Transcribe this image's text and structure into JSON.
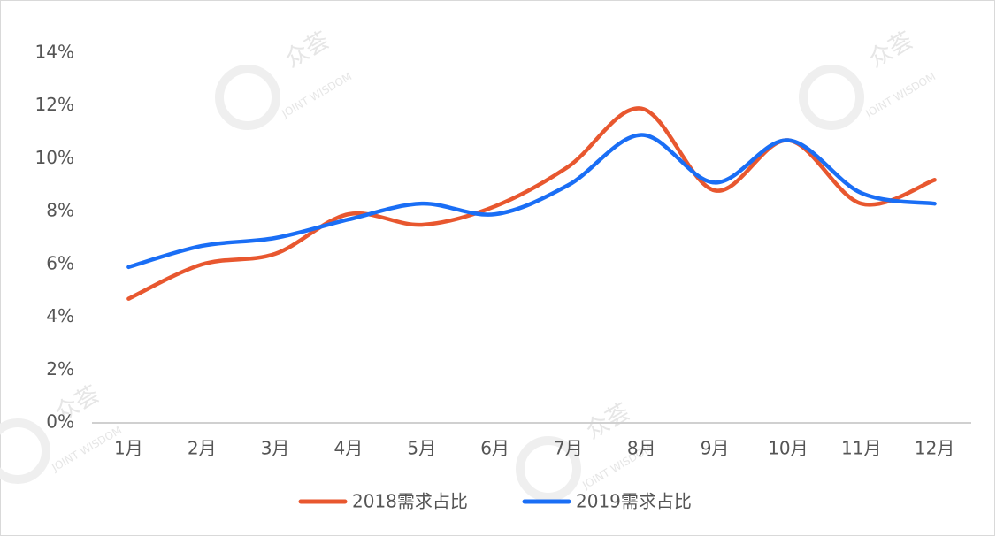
{
  "chart_data": {
    "type": "line",
    "categories": [
      "1月",
      "2月",
      "3月",
      "4月",
      "5月",
      "6月",
      "7月",
      "8月",
      "9月",
      "10月",
      "11月",
      "12月"
    ],
    "series": [
      {
        "name": "2018需求占比",
        "color": "#e8572f",
        "values": [
          4.7,
          6.0,
          6.4,
          7.9,
          7.5,
          8.2,
          9.7,
          11.9,
          8.8,
          10.7,
          8.3,
          9.2
        ]
      },
      {
        "name": "2019需求占比",
        "color": "#1a6ef5",
        "values": [
          5.9,
          6.7,
          7.0,
          7.7,
          8.3,
          7.9,
          9.0,
          10.9,
          9.1,
          10.7,
          8.7,
          8.3
        ]
      }
    ],
    "ylim": [
      0,
      14
    ],
    "yticks": [
      {
        "value": 0,
        "label": "0%"
      },
      {
        "value": 2,
        "label": "2%"
      },
      {
        "value": 4,
        "label": "4%"
      },
      {
        "value": 6,
        "label": "6%"
      },
      {
        "value": 8,
        "label": "8%"
      },
      {
        "value": 10,
        "label": "10%"
      },
      {
        "value": 12,
        "label": "12%"
      },
      {
        "value": 14,
        "label": "14%"
      }
    ],
    "grid": false,
    "legend": "bottom",
    "watermark": [
      "众荟",
      "JOINT WISDOM"
    ]
  }
}
